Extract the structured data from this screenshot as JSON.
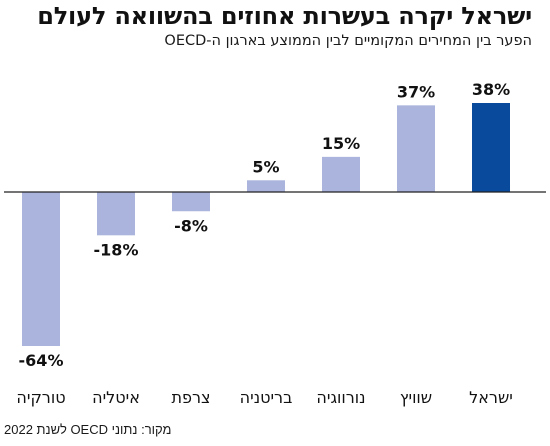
{
  "title": "ישראל יקרה בעשרות אחוזים בהשוואה לעולם",
  "subtitle": "הפער בין המחירים המקומיים לבין הממוצע בארגון ה-OECD",
  "source": "מקור: נתוני OECD לשנת 2022",
  "colors": {
    "bar_default": "#aab4dc",
    "bar_highlight": "#0a4a9c",
    "baseline": "#222222"
  },
  "chart_data": {
    "type": "bar",
    "categories": [
      "ישראל",
      "שוויץ",
      "נורווגיה",
      "בריטניה",
      "צרפת",
      "איטליה",
      "טורקיה"
    ],
    "values": [
      38,
      37,
      15,
      5,
      -8,
      -18,
      -64
    ],
    "labels": [
      "38%",
      "37%",
      "15%",
      "5%",
      "-8%",
      "-18%",
      "-64%"
    ],
    "highlight": "ישראל",
    "ylim": [
      -64,
      38
    ],
    "grid": false,
    "legend": "none"
  }
}
